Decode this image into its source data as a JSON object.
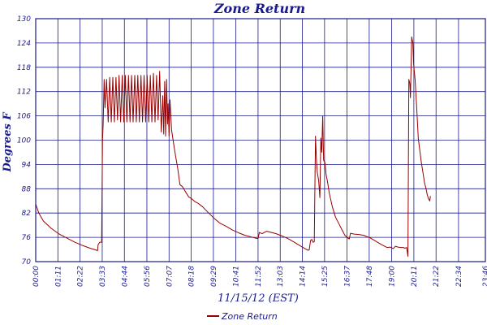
{
  "chart_data": {
    "type": "line",
    "title": "Zone Return",
    "xlabel": "11/15/12 (EST)",
    "ylabel": "Degrees F",
    "ylim": [
      70,
      130
    ],
    "yticks": [
      70,
      76,
      82,
      88,
      94,
      100,
      106,
      112,
      118,
      124,
      130
    ],
    "xlim": [
      0,
      1440
    ],
    "xticks": [
      {
        "t": 0,
        "label": "00:00"
      },
      {
        "t": 71,
        "label": "01:11"
      },
      {
        "t": 142,
        "label": "02:22"
      },
      {
        "t": 213,
        "label": "03:33"
      },
      {
        "t": 284,
        "label": "04:44"
      },
      {
        "t": 356,
        "label": "05:56"
      },
      {
        "t": 427,
        "label": "07:07"
      },
      {
        "t": 498,
        "label": "08:18"
      },
      {
        "t": 569,
        "label": "09:29"
      },
      {
        "t": 641,
        "label": "10:41"
      },
      {
        "t": 712,
        "label": "11:52"
      },
      {
        "t": 783,
        "label": "13:03"
      },
      {
        "t": 854,
        "label": "14:14"
      },
      {
        "t": 925,
        "label": "15:25"
      },
      {
        "t": 997,
        "label": "16:37"
      },
      {
        "t": 1068,
        "label": "17:48"
      },
      {
        "t": 1140,
        "label": "19:00"
      },
      {
        "t": 1211,
        "label": "20:11"
      },
      {
        "t": 1282,
        "label": "21:22"
      },
      {
        "t": 1354,
        "label": "22:34"
      },
      {
        "t": 1440,
        "label": "23:46"
      }
    ],
    "grid": true,
    "legend_position": "bottom-center",
    "series": [
      {
        "name": "Zone Return",
        "color": "#990000",
        "points": [
          [
            0,
            84.2
          ],
          [
            10,
            82.0
          ],
          [
            25,
            80.0
          ],
          [
            50,
            78.2
          ],
          [
            75,
            76.8
          ],
          [
            100,
            75.8
          ],
          [
            125,
            74.8
          ],
          [
            150,
            74.0
          ],
          [
            175,
            73.3
          ],
          [
            188,
            73.0
          ],
          [
            198,
            72.7
          ],
          [
            200,
            74.2
          ],
          [
            205,
            74.8
          ],
          [
            211,
            74.8
          ],
          [
            214,
            100
          ],
          [
            216,
            104
          ],
          [
            219,
            115
          ],
          [
            222,
            108
          ],
          [
            227,
            115
          ],
          [
            232,
            104.5
          ],
          [
            237,
            115.5
          ],
          [
            242,
            104.5
          ],
          [
            247,
            115.5
          ],
          [
            252,
            104.5
          ],
          [
            257,
            115.5
          ],
          [
            262,
            105
          ],
          [
            267,
            116
          ],
          [
            272,
            104.5
          ],
          [
            277,
            116
          ],
          [
            282,
            104.5
          ],
          [
            287,
            116
          ],
          [
            292,
            104.5
          ],
          [
            297,
            116
          ],
          [
            302,
            104.5
          ],
          [
            307,
            116
          ],
          [
            312,
            104.5
          ],
          [
            317,
            116
          ],
          [
            322,
            104.5
          ],
          [
            327,
            116
          ],
          [
            332,
            104.5
          ],
          [
            337,
            116
          ],
          [
            342,
            104.5
          ],
          [
            347,
            116
          ],
          [
            352,
            104.5
          ],
          [
            357,
            116
          ],
          [
            362,
            104.5
          ],
          [
            367,
            116
          ],
          [
            372,
            104.5
          ],
          [
            377,
            116.5
          ],
          [
            382,
            104.5
          ],
          [
            387,
            116
          ],
          [
            392,
            105
          ],
          [
            397,
            117
          ],
          [
            402,
            102
          ],
          [
            407,
            111
          ],
          [
            410,
            101.5
          ],
          [
            413,
            114.5
          ],
          [
            416,
            101
          ],
          [
            419,
            115
          ],
          [
            422,
            104
          ],
          [
            424,
            109
          ],
          [
            427,
            101
          ],
          [
            430,
            110
          ],
          [
            435,
            102.5
          ],
          [
            442,
            99
          ],
          [
            448,
            96
          ],
          [
            455,
            93
          ],
          [
            462,
            89
          ],
          [
            470,
            88.5
          ],
          [
            480,
            87.2
          ],
          [
            490,
            86
          ],
          [
            500,
            85.5
          ],
          [
            510,
            84.8
          ],
          [
            520,
            84.4
          ],
          [
            535,
            83.5
          ],
          [
            550,
            82.3
          ],
          [
            570,
            80.8
          ],
          [
            590,
            79.5
          ],
          [
            610,
            78.7
          ],
          [
            630,
            77.8
          ],
          [
            650,
            77.1
          ],
          [
            670,
            76.5
          ],
          [
            690,
            76.1
          ],
          [
            705,
            75.8
          ],
          [
            712,
            75.7
          ],
          [
            716,
            77.2
          ],
          [
            725,
            76.9
          ],
          [
            740,
            77.5
          ],
          [
            755,
            77.2
          ],
          [
            770,
            76.9
          ],
          [
            790,
            76.3
          ],
          [
            810,
            75.6
          ],
          [
            830,
            74.7
          ],
          [
            845,
            74.0
          ],
          [
            860,
            73.3
          ],
          [
            872,
            72.8
          ],
          [
            876,
            72.9
          ],
          [
            880,
            75.2
          ],
          [
            884,
            75.5
          ],
          [
            888,
            74.8
          ],
          [
            892,
            74.9
          ],
          [
            896,
            101
          ],
          [
            899,
            95
          ],
          [
            902,
            92
          ],
          [
            906,
            90
          ],
          [
            910,
            85.8
          ],
          [
            913,
            100.5
          ],
          [
            916,
            97
          ],
          [
            919,
            106
          ],
          [
            922,
            95
          ],
          [
            926,
            94.5
          ],
          [
            930,
            91.5
          ],
          [
            935,
            89.5
          ],
          [
            940,
            87
          ],
          [
            950,
            83.5
          ],
          [
            960,
            81
          ],
          [
            970,
            79.5
          ],
          [
            980,
            78
          ],
          [
            990,
            76.5
          ],
          [
            1000,
            75.8
          ],
          [
            1004,
            75.6
          ],
          [
            1008,
            77
          ],
          [
            1020,
            76.8
          ],
          [
            1035,
            76.7
          ],
          [
            1050,
            76.5
          ],
          [
            1070,
            75.9
          ],
          [
            1090,
            75.0
          ],
          [
            1105,
            74.3
          ],
          [
            1115,
            73.9
          ],
          [
            1125,
            73.5
          ],
          [
            1135,
            73.6
          ],
          [
            1145,
            73.2
          ],
          [
            1152,
            73.8
          ],
          [
            1160,
            73.6
          ],
          [
            1170,
            73.5
          ],
          [
            1178,
            73.5
          ],
          [
            1182,
            73.3
          ],
          [
            1188,
            73.5
          ],
          [
            1192,
            71.3
          ],
          [
            1195,
            115
          ],
          [
            1198,
            114
          ],
          [
            1200,
            110.5
          ],
          [
            1204,
            125.5
          ],
          [
            1208,
            124
          ],
          [
            1210,
            119
          ],
          [
            1215,
            115
          ],
          [
            1220,
            108
          ],
          [
            1225,
            100.5
          ],
          [
            1230,
            97.5
          ],
          [
            1235,
            94.5
          ],
          [
            1240,
            92
          ],
          [
            1245,
            89.5
          ],
          [
            1250,
            88
          ],
          [
            1254,
            86.5
          ],
          [
            1258,
            85.5
          ],
          [
            1262,
            85.0
          ],
          [
            1264,
            86.2
          ]
        ]
      }
    ]
  }
}
